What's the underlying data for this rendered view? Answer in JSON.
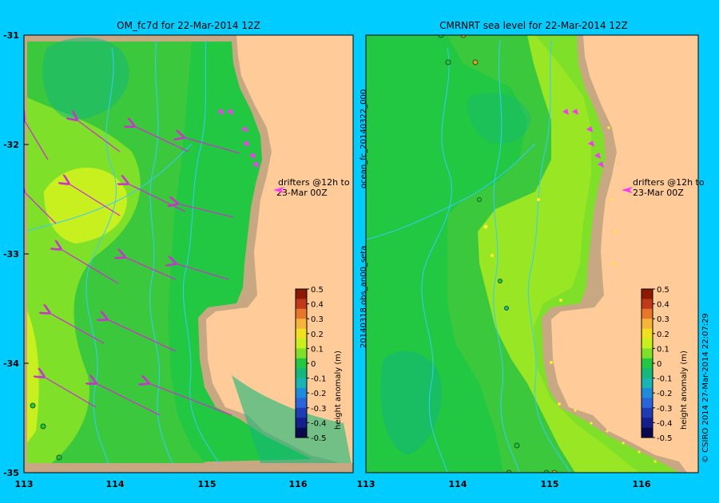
{
  "left_panel": {
    "title": "OM_fc7d for 22-Mar-2014 12Z",
    "drifter_note": [
      "drifters @12h to",
      "23-Mar 00Z"
    ]
  },
  "right_panel": {
    "title": "CMRNRT sea level  for 22-Mar-2014 12Z",
    "drifter_note": [
      "drifters @12h to",
      "23-Mar 00Z"
    ],
    "side_label_top": "ocean_fc_20140322_000",
    "side_label_bottom": "20140318.obs_an00_seta"
  },
  "axes": {
    "lat_ticks": [
      "-31",
      "-32",
      "-33",
      "-34",
      "-35"
    ],
    "lon_ticks_left": [
      "113",
      "114",
      "115",
      "116"
    ],
    "lon_ticks_right": [
      "113",
      "114",
      "115",
      "116"
    ]
  },
  "colorbar": {
    "label": "height anomaly (m)",
    "ticks": [
      "0.5",
      "0.4",
      "0.3",
      "0.2",
      "0.1",
      "0",
      "-0.1",
      "-0.2",
      "-0.3",
      "-0.4",
      "-0.5"
    ],
    "colors": [
      "#8b1a00",
      "#c0391b",
      "#e8762a",
      "#f5b43a",
      "#f0e020",
      "#c8f01e",
      "#7ee028",
      "#22c841",
      "#14b87a",
      "#1ab4b4",
      "#1e8cdc",
      "#2864dc",
      "#1e3cb4",
      "#141e8c",
      "#0a0a50"
    ]
  },
  "credit": "© CSIRO 2014   27-Mar-2014 22:07:29",
  "colors": {
    "background": "#00ccff",
    "land": "#ffcc99",
    "shelf": "#c8a882",
    "arrow": "#cc33cc",
    "drifter": "#ff33ff"
  }
}
